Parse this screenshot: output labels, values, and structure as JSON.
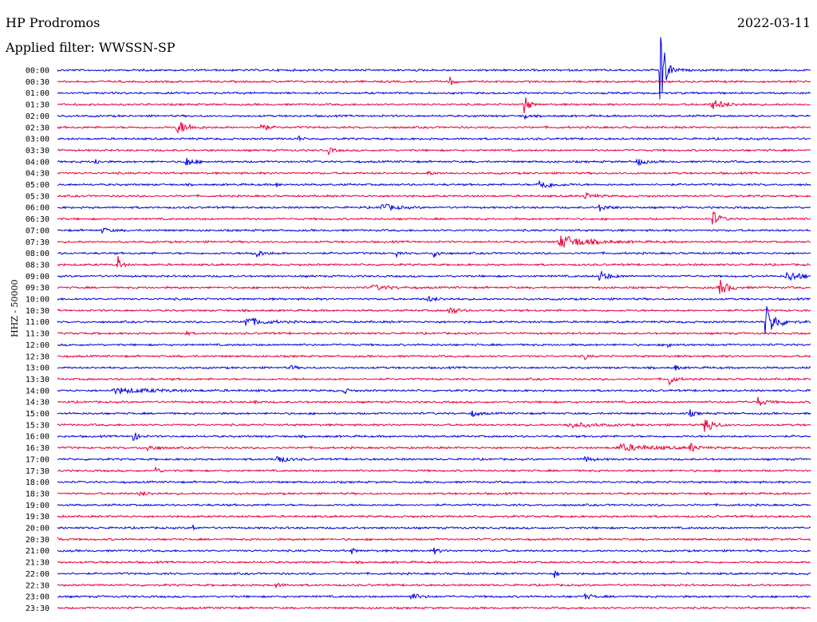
{
  "header": {
    "station": "HP Prodromos",
    "filter": "Applied filter: WWSSN-SP",
    "date": "2022-03-11"
  },
  "axis": {
    "channel_label": "HHZ - 50000"
  },
  "chart_data": {
    "type": "line",
    "title": "HP Prodromos",
    "subtitle": "Applied filter: WWSSN-SP",
    "ylabel": "HHZ - 50000",
    "colors": [
      "#0000e0",
      "#e8003c"
    ],
    "rows": [
      {
        "label": "00:00",
        "events": [
          {
            "t": 0.8,
            "a": 60,
            "w": 0.006
          }
        ]
      },
      {
        "label": "00:30",
        "events": [
          {
            "t": 0.52,
            "a": 8,
            "w": 0.004
          }
        ]
      },
      {
        "label": "01:00",
        "events": []
      },
      {
        "label": "01:30",
        "events": [
          {
            "t": 0.62,
            "a": 22,
            "w": 0.004
          },
          {
            "t": 0.87,
            "a": 6,
            "w": 0.015
          }
        ]
      },
      {
        "label": "02:00",
        "events": [
          {
            "t": 0.62,
            "a": 6,
            "w": 0.003
          }
        ]
      },
      {
        "label": "02:30",
        "events": [
          {
            "t": 0.16,
            "a": 9,
            "w": 0.012
          },
          {
            "t": 0.27,
            "a": 7,
            "w": 0.006
          }
        ]
      },
      {
        "label": "03:00",
        "events": [
          {
            "t": 0.32,
            "a": 4,
            "w": 0.003
          }
        ]
      },
      {
        "label": "03:30",
        "events": [
          {
            "t": 0.36,
            "a": 4,
            "w": 0.006
          }
        ]
      },
      {
        "label": "04:00",
        "events": [
          {
            "t": 0.05,
            "a": 5,
            "w": 0.004
          },
          {
            "t": 0.17,
            "a": 7,
            "w": 0.008
          },
          {
            "t": 0.77,
            "a": 5,
            "w": 0.008
          }
        ]
      },
      {
        "label": "04:30",
        "events": [
          {
            "t": 0.49,
            "a": 2,
            "w": 0.01
          }
        ]
      },
      {
        "label": "05:00",
        "events": [
          {
            "t": 0.64,
            "a": 6,
            "w": 0.015
          },
          {
            "t": 0.29,
            "a": 3,
            "w": 0.004
          }
        ]
      },
      {
        "label": "05:30",
        "events": [
          {
            "t": 0.7,
            "a": 4,
            "w": 0.01
          }
        ]
      },
      {
        "label": "06:00",
        "events": [
          {
            "t": 0.43,
            "a": 5,
            "w": 0.015
          },
          {
            "t": 0.72,
            "a": 4,
            "w": 0.01
          }
        ]
      },
      {
        "label": "06:30",
        "events": [
          {
            "t": 0.87,
            "a": 10,
            "w": 0.008
          }
        ]
      },
      {
        "label": "07:00",
        "events": [
          {
            "t": 0.06,
            "a": 3,
            "w": 0.01
          }
        ]
      },
      {
        "label": "07:30",
        "events": [
          {
            "t": 0.67,
            "a": 8,
            "w": 0.03
          }
        ]
      },
      {
        "label": "08:00",
        "events": [
          {
            "t": 0.26,
            "a": 6,
            "w": 0.01
          },
          {
            "t": 0.45,
            "a": 4,
            "w": 0.003
          },
          {
            "t": 0.5,
            "a": 8,
            "w": 0.005
          }
        ]
      },
      {
        "label": "08:30",
        "events": [
          {
            "t": 0.08,
            "a": 12,
            "w": 0.004
          }
        ]
      },
      {
        "label": "09:00",
        "events": [
          {
            "t": 0.72,
            "a": 6,
            "w": 0.012
          },
          {
            "t": 0.97,
            "a": 6,
            "w": 0.02
          }
        ]
      },
      {
        "label": "09:30",
        "events": [
          {
            "t": 0.88,
            "a": 10,
            "w": 0.01
          },
          {
            "t": 0.42,
            "a": 3,
            "w": 0.02
          }
        ]
      },
      {
        "label": "10:00",
        "events": [
          {
            "t": 0.49,
            "a": 3,
            "w": 0.015
          }
        ]
      },
      {
        "label": "10:30",
        "events": [
          {
            "t": 0.52,
            "a": 5,
            "w": 0.01
          }
        ]
      },
      {
        "label": "11:00",
        "events": [
          {
            "t": 0.25,
            "a": 6,
            "w": 0.02
          },
          {
            "t": 0.94,
            "a": 22,
            "w": 0.012
          }
        ]
      },
      {
        "label": "11:30",
        "events": [
          {
            "t": 0.17,
            "a": 3,
            "w": 0.003
          }
        ]
      },
      {
        "label": "12:00",
        "events": [
          {
            "t": 0.81,
            "a": 5,
            "w": 0.004
          }
        ]
      },
      {
        "label": "12:30",
        "events": [
          {
            "t": 0.7,
            "a": 5,
            "w": 0.003
          }
        ]
      },
      {
        "label": "13:00",
        "events": [
          {
            "t": 0.31,
            "a": 4,
            "w": 0.004
          },
          {
            "t": 0.82,
            "a": 4,
            "w": 0.004
          }
        ]
      },
      {
        "label": "13:30",
        "events": [
          {
            "t": 0.81,
            "a": 11,
            "w": 0.006
          }
        ]
      },
      {
        "label": "14:00",
        "events": [
          {
            "t": 0.08,
            "a": 3,
            "w": 0.05
          },
          {
            "t": 0.38,
            "a": 4,
            "w": 0.005
          }
        ]
      },
      {
        "label": "14:30",
        "events": [
          {
            "t": 0.26,
            "a": 5,
            "w": 0.004
          },
          {
            "t": 0.93,
            "a": 6,
            "w": 0.008
          }
        ]
      },
      {
        "label": "15:00",
        "events": [
          {
            "t": 0.55,
            "a": 4,
            "w": 0.008
          },
          {
            "t": 0.84,
            "a": 4,
            "w": 0.006
          }
        ]
      },
      {
        "label": "15:30",
        "events": [
          {
            "t": 0.86,
            "a": 14,
            "w": 0.008
          },
          {
            "t": 0.68,
            "a": 3,
            "w": 0.03
          }
        ]
      },
      {
        "label": "16:00",
        "events": [
          {
            "t": 0.1,
            "a": 8,
            "w": 0.005
          }
        ]
      },
      {
        "label": "16:30",
        "events": [
          {
            "t": 0.12,
            "a": 4,
            "w": 0.01
          },
          {
            "t": 0.75,
            "a": 4,
            "w": 0.04
          },
          {
            "t": 0.84,
            "a": 7,
            "w": 0.006
          }
        ]
      },
      {
        "label": "17:00",
        "events": [
          {
            "t": 0.29,
            "a": 7,
            "w": 0.01
          },
          {
            "t": 0.7,
            "a": 4,
            "w": 0.008
          }
        ]
      },
      {
        "label": "17:30",
        "events": [
          {
            "t": 0.13,
            "a": 6,
            "w": 0.004
          }
        ]
      },
      {
        "label": "18:00",
        "events": []
      },
      {
        "label": "18:30",
        "events": [
          {
            "t": 0.11,
            "a": 3,
            "w": 0.01
          }
        ]
      },
      {
        "label": "19:00",
        "events": []
      },
      {
        "label": "19:30",
        "events": []
      },
      {
        "label": "20:00",
        "events": [
          {
            "t": 0.18,
            "a": 4,
            "w": 0.003
          }
        ]
      },
      {
        "label": "20:30",
        "events": [
          {
            "t": 0.0,
            "a": 3,
            "w": 0.003
          }
        ]
      },
      {
        "label": "21:00",
        "events": [
          {
            "t": 0.39,
            "a": 4,
            "w": 0.004
          },
          {
            "t": 0.5,
            "a": 4,
            "w": 0.006
          }
        ]
      },
      {
        "label": "21:30",
        "events": []
      },
      {
        "label": "22:00",
        "events": [
          {
            "t": 0.66,
            "a": 6,
            "w": 0.003
          }
        ]
      },
      {
        "label": "22:30",
        "events": [
          {
            "t": 0.29,
            "a": 3,
            "w": 0.006
          }
        ]
      },
      {
        "label": "23:00",
        "events": [
          {
            "t": 0.47,
            "a": 4,
            "w": 0.01
          },
          {
            "t": 0.7,
            "a": 3,
            "w": 0.01
          }
        ]
      },
      {
        "label": "23:30",
        "events": []
      }
    ]
  }
}
